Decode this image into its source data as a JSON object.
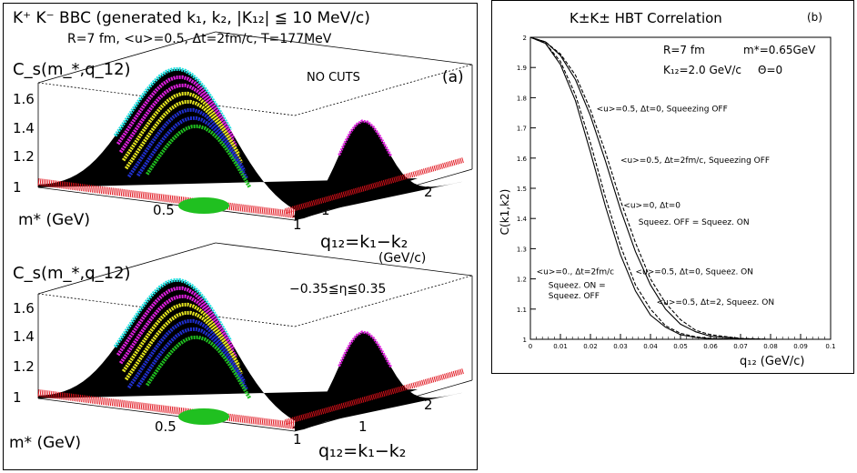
{
  "panel_a": {
    "title": "K⁺ K⁻ BBC (generated k₁, k₂, |K₁₂| ≦ 10 MeV/c)",
    "params": "R=7 fm,  <u>=0.5, Δt=2fm/c, T=177MeV",
    "label": "(a)",
    "top_plot": {
      "zlabel": "C_s(m_*,q_12)",
      "annotation": "NO CUTS",
      "z_ticks": [
        "1",
        "1.2",
        "1.4",
        "1.6"
      ],
      "m_ticks": [
        "0.5",
        "1"
      ],
      "q_ticks": [
        "1",
        "2"
      ],
      "m_label": "m* (GeV)",
      "q_label": "q₁₂=k₁−k₂",
      "q_unit": "(GeV/c)"
    },
    "bottom_plot": {
      "zlabel": "C_s(m_*,q_12)",
      "annotation": "−0.35≦η≦0.35",
      "z_ticks": [
        "1",
        "1.2",
        "1.4",
        "1.6"
      ],
      "m_ticks": [
        "0.5",
        "1"
      ],
      "q_ticks": [
        "1",
        "2"
      ],
      "m_label": "m* (GeV)",
      "q_label": "q₁₂=k₁−k₂"
    },
    "colors": {
      "red": "#e0101a",
      "green": "#20c020",
      "blue": "#2030d0",
      "yellow": "#e8e820",
      "magenta": "#e020e0",
      "cyan": "#20e0e0",
      "black": "#000000"
    }
  },
  "chart_data": {
    "type": "line",
    "title": "K±K± HBT Correlation",
    "label": "(b)",
    "xlabel": "q₁₂ (GeV/c)",
    "ylabel": "C(k1,k2)",
    "xlim": [
      0,
      0.1
    ],
    "ylim": [
      1,
      2
    ],
    "x_ticks": [
      "0",
      "0.01",
      "0.02",
      "0.03",
      "0.04",
      "0.05",
      "0.06",
      "0.07",
      "0.08",
      "0.09",
      "0.1"
    ],
    "y_ticks": [
      "1",
      "1.1",
      "1.2",
      "1.3",
      "1.4",
      "1.5",
      "1.6",
      "1.7",
      "1.8",
      "1.9",
      "2"
    ],
    "params": [
      "R=7 fm",
      "m*=0.65GeV",
      "K₁₂=2.0 GeV/c",
      "Θ=0"
    ],
    "x": [
      0,
      0.005,
      0.01,
      0.015,
      0.02,
      0.025,
      0.03,
      0.035,
      0.04,
      0.045,
      0.05,
      0.055,
      0.06,
      0.07,
      0.08,
      0.09,
      0.1
    ],
    "series": [
      {
        "style": "solid",
        "values": [
          2.0,
          1.98,
          1.91,
          1.79,
          1.62,
          1.44,
          1.28,
          1.16,
          1.08,
          1.04,
          1.015,
          1.006,
          1.002,
          1.0,
          1.0,
          1.0,
          1.0
        ]
      },
      {
        "style": "dashed",
        "values": [
          2.0,
          1.98,
          1.92,
          1.81,
          1.65,
          1.47,
          1.31,
          1.18,
          1.1,
          1.045,
          1.02,
          1.008,
          1.003,
          1.0,
          1.0,
          1.0,
          1.0
        ]
      },
      {
        "style": "solid",
        "values": [
          2.0,
          1.985,
          1.94,
          1.86,
          1.74,
          1.59,
          1.43,
          1.29,
          1.18,
          1.1,
          1.05,
          1.025,
          1.01,
          1.002,
          1.0,
          1.0,
          1.0
        ]
      },
      {
        "style": "dashed",
        "values": [
          2.0,
          1.985,
          1.945,
          1.875,
          1.76,
          1.62,
          1.46,
          1.32,
          1.2,
          1.12,
          1.065,
          1.03,
          1.015,
          1.003,
          1.0,
          1.0,
          1.0
        ]
      }
    ],
    "annotations": [
      {
        "text": "<u>=0.5, Δt=0, Squeezing OFF",
        "x": 0.022,
        "y": 1.755
      },
      {
        "text": "<u>=0.5, Δt=2fm/c, Squeezing OFF",
        "x": 0.03,
        "y": 1.585
      },
      {
        "text": "<u>=0, Δt=0",
        "x": 0.031,
        "y": 1.435
      },
      {
        "text": "Squeez. OFF = Squeez. ON",
        "x": 0.036,
        "y": 1.38
      },
      {
        "text": "<u>=0., Δt=2fm/c",
        "x": 0.002,
        "y": 1.215
      },
      {
        "text": "Squeez. ON =",
        "x": 0.006,
        "y": 1.17
      },
      {
        "text": "Squeez. OFF",
        "x": 0.006,
        "y": 1.135
      },
      {
        "text": "<u>=0.5, Δt=0, Squeez. ON",
        "x": 0.035,
        "y": 1.215
      },
      {
        "text": "<u>=0.5, Δt=2, Squeez. ON",
        "x": 0.042,
        "y": 1.115
      }
    ]
  }
}
